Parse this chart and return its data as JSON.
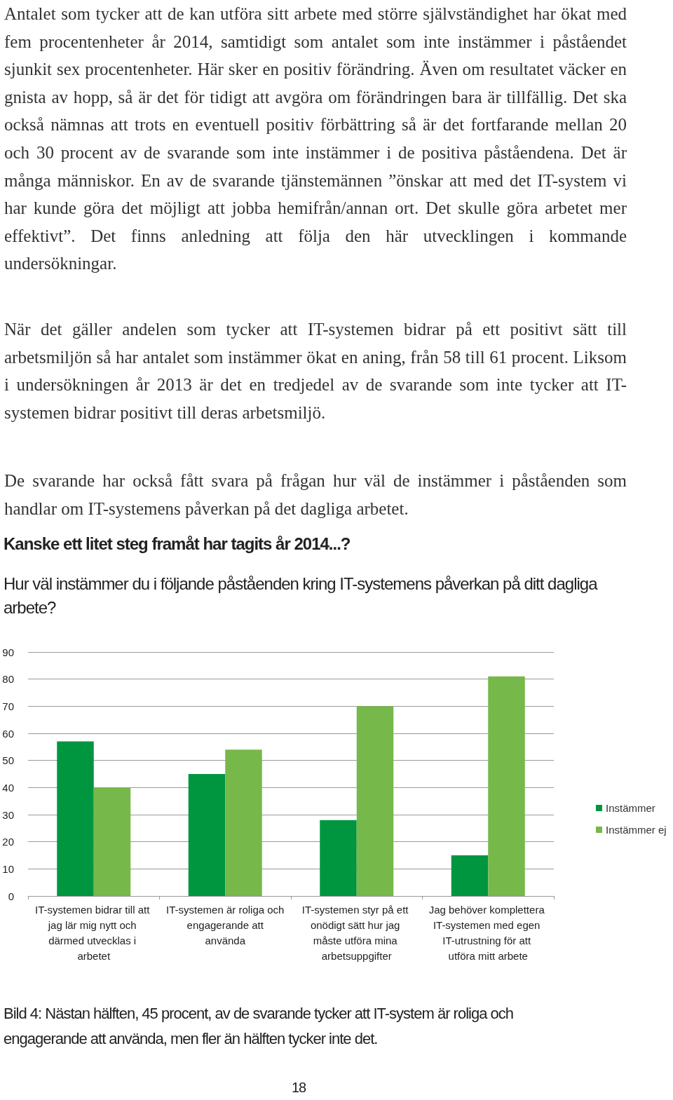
{
  "chart_data": {
    "type": "bar",
    "title": "Kanske ett litet steg framåt har tagits år 2014...?",
    "subtitle": "Hur väl instämmer du i följande påståenden kring IT-systemens påverkan på ditt dagliga arbete?",
    "categories": [
      "IT-systemen bidrar till att jag lär mig nytt och därmed utvecklas i arbetet",
      "IT-systemen är roliga och engagerande att använda",
      "IT-systemen styr på ett onödigt sätt hur jag måste utföra mina arbetsuppgifter",
      "Jag behöver komplettera IT-systemen med egen IT-utrustning för att utföra mitt arbete"
    ],
    "series": [
      {
        "name": "Instämmer",
        "color": "#009640",
        "values": [
          57,
          45,
          28,
          15
        ]
      },
      {
        "name": "Instämmer ej",
        "color": "#76b84a",
        "values": [
          40,
          54,
          70,
          81
        ]
      }
    ],
    "ylim": [
      0,
      90
    ],
    "yticks": [
      0,
      10,
      20,
      30,
      40,
      50,
      60,
      70,
      80,
      90
    ],
    "grid": "y",
    "legend": "right",
    "annotations": [
      "Antalet som tycker att de kan utföra sitt arbete med större självständighet har ökat med fem procentenheter år 2014, samtidigt som antalet som inte instämmer i påståendet sjunkit sex procentenheter. Här sker en positiv förändring. Även om resultatet väcker en gnista av hopp, så är det för tidigt att avgöra om förändringen bara är tillfällig. Det ska också nämnas att trots en eventuell positiv förbättring så är det fortfarande mellan 20 och 30 procent av de svarande som inte instämmer i de positiva påståendena. Det är många människor. En av de svarande tjänstemännen ”önskar att med det IT-system vi har kunde göra det möjligt att jobba hemifrån/annan ort. Det skulle göra arbetet mer effektivt”. Det finns anledning att följa den här utvecklingen i kommande undersökningar.",
      "När det gäller andelen som tycker att IT-systemen bidrar på ett positivt sätt till arbetsmiljön så har antalet som instämmer ökat en aning, från 58 till 61 procent. Liksom i undersökningen år 2013 är det en tredjedel av de svarande som inte tycker att IT-systemen bidrar positivt till deras arbetsmiljö.",
      "De svarande har också fått svara på frågan hur väl de instämmer i påståenden som handlar om IT-systemens påverkan på det dagliga arbetet.",
      "Bild 4: Nästan hälften, 45 procent, av de svarande tycker att IT-system är roliga och engagerande att använda, men fler än hälften tycker inte det.",
      "18"
    ]
  }
}
